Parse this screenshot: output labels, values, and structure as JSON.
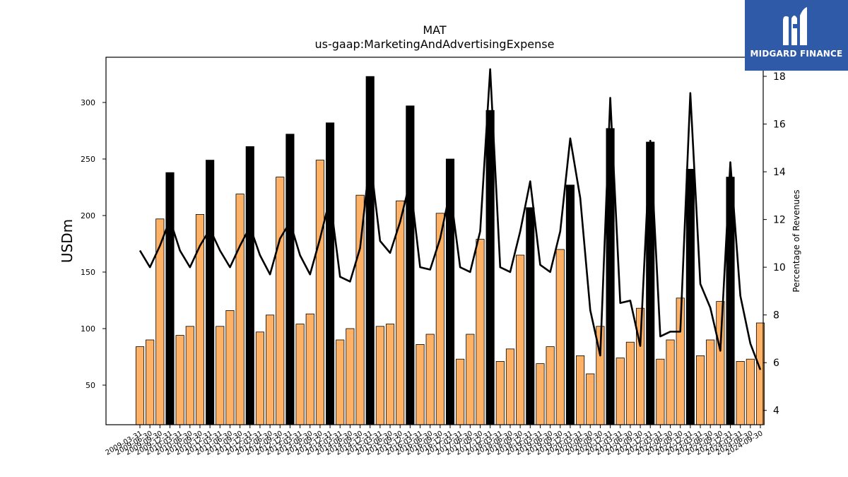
{
  "chart_data": {
    "type": "bar",
    "title": "MAT",
    "subtitle": "us-gaap:MarketingAndAdvertisingExpense",
    "ylabel": "USDm",
    "y2label": "Percentage of Revenues",
    "ylim": [
      15,
      340
    ],
    "y2lim": [
      3.4,
      18.8
    ],
    "yticks": [
      50,
      100,
      150,
      200,
      250,
      300
    ],
    "y2ticks": [
      4,
      6,
      8,
      10,
      12,
      14,
      16,
      18
    ],
    "categories": [
      "2009-03-31",
      "2009-06-30",
      "2009-09-30",
      "2009-12-31",
      "2010-03-31",
      "2010-06-30",
      "2010-09-30",
      "2010-12-31",
      "2011-03-31",
      "2011-06-30",
      "2011-09-30",
      "2011-12-31",
      "2012-03-31",
      "2012-06-30",
      "2012-09-30",
      "2012-12-31",
      "2013-03-31",
      "2013-06-30",
      "2013-09-30",
      "2013-12-31",
      "2014-03-31",
      "2014-06-30",
      "2014-09-30",
      "2014-12-31",
      "2015-03-31",
      "2015-06-30",
      "2015-09-30",
      "2015-12-31",
      "2016-03-31",
      "2016-06-30",
      "2016-09-30",
      "2016-12-31",
      "2017-03-31",
      "2017-06-30",
      "2017-09-30",
      "2017-12-31",
      "2018-03-31",
      "2018-06-30",
      "2018-09-30",
      "2018-12-31",
      "2019-03-31",
      "2019-06-30",
      "2019-09-30",
      "2019-12-31",
      "2020-03-31",
      "2020-06-30",
      "2020-09-30",
      "2020-12-31",
      "2021-03-31",
      "2021-06-30",
      "2021-09-30",
      "2021-12-31",
      "2022-03-31",
      "2022-06-30",
      "2022-09-30",
      "2022-12-31",
      "2023-03-31",
      "2023-06-30",
      "2023-09-30",
      "2023-12-31",
      "2024-03-31",
      "2024-06-30",
      "2024-09-30"
    ],
    "xtick_labels": [
      "2009-03-31",
      "2009-06-30",
      "2009-09-30",
      "2009-12-31",
      "2010-03-31",
      "2010-06-30",
      "2010-09-30",
      "2010-12-31",
      "2011-03-31",
      "2011-06-30",
      "2011-09-30",
      "2011-12-31",
      "2012-03-31",
      "2012-06-30",
      "2012-09-30",
      "2012-12-31",
      "2013-03-31",
      "2013-06-30",
      "2013-09-30",
      "2013-12-31",
      "2014-03-31",
      "2014-06-30",
      "2014-09-30",
      "2014-12-31",
      "2015-03-31",
      "2015-06-30",
      "2015-09-30",
      "2015-12-31",
      "2016-03-31",
      "2016-06-30",
      "2016-09-30",
      "2016-12-31",
      "2017-03-31",
      "2017-06-30",
      "2017-09-30",
      "2017-12-31",
      "2018-03-31",
      "2018-06-30",
      "2018-09-30",
      "2018-12-31",
      "2019-03-31",
      "2019-06-30",
      "2019-09-30",
      "2019-12-31",
      "2020-03-31",
      "2020-06-30",
      "2020-09-30",
      "2020-12-31",
      "2021-03-31",
      "2021-06-30",
      "2021-09-30",
      "2021-12-31",
      "2022-03-31",
      "2022-06-30",
      "2022-09-30",
      "2022-12-31",
      "2023-03-31",
      "2023-06-30",
      "2023-09-30",
      "2023-12-31",
      "2024-03-31",
      "2024-06-30",
      "2024-09-30"
    ],
    "series": [
      {
        "type": "bar",
        "axis": "left",
        "values": [
          84,
          90,
          197,
          238,
          94,
          102,
          201,
          249,
          102,
          116,
          219,
          261,
          97,
          112,
          234,
          272,
          104,
          113,
          249,
          282,
          90,
          100,
          218,
          323,
          102,
          104,
          213,
          297,
          86,
          95,
          202,
          250,
          73,
          95,
          179,
          293,
          71,
          82,
          165,
          207,
          69,
          84,
          170,
          227,
          76,
          60,
          102,
          277,
          74,
          88,
          118,
          265,
          73,
          90,
          127,
          241,
          76,
          90,
          124,
          234,
          71,
          73,
          105
        ],
        "bar_colors": [
          "#ffb266",
          "#ffb266",
          "#ffb266",
          "#000000",
          "#ffb266",
          "#ffb266",
          "#ffb266",
          "#000000",
          "#ffb266",
          "#ffb266",
          "#ffb266",
          "#000000",
          "#ffb266",
          "#ffb266",
          "#ffb266",
          "#000000",
          "#ffb266",
          "#ffb266",
          "#ffb266",
          "#000000",
          "#ffb266",
          "#ffb266",
          "#ffb266",
          "#000000",
          "#ffb266",
          "#ffb266",
          "#ffb266",
          "#000000",
          "#ffb266",
          "#ffb266",
          "#ffb266",
          "#000000",
          "#ffb266",
          "#ffb266",
          "#ffb266",
          "#000000",
          "#ffb266",
          "#ffb266",
          "#ffb266",
          "#000000",
          "#ffb266",
          "#ffb266",
          "#ffb266",
          "#000000",
          "#ffb266",
          "#ffb266",
          "#ffb266",
          "#000000",
          "#ffb266",
          "#ffb266",
          "#ffb266",
          "#000000",
          "#ffb266",
          "#ffb266",
          "#ffb266",
          "#000000",
          "#ffb266",
          "#ffb266",
          "#ffb266",
          "#000000",
          "#ffb266",
          "#ffb266",
          "#ffb266"
        ]
      },
      {
        "type": "line",
        "axis": "right",
        "color": "#000000",
        "values": [
          10.7,
          10.0,
          10.9,
          12.0,
          10.7,
          10.0,
          10.9,
          11.6,
          10.7,
          10.0,
          10.9,
          11.7,
          10.5,
          9.7,
          11.2,
          11.9,
          10.5,
          9.7,
          11.2,
          12.9,
          9.6,
          9.4,
          10.8,
          14.6,
          11.1,
          10.6,
          11.9,
          13.6,
          10.0,
          9.9,
          11.2,
          13.2,
          10.0,
          9.8,
          11.5,
          18.3,
          10.0,
          9.8,
          11.5,
          13.6,
          10.1,
          9.8,
          11.5,
          15.4,
          12.9,
          8.2,
          6.3,
          17.1,
          8.5,
          8.6,
          6.7,
          15.3,
          7.1,
          7.3,
          7.3,
          17.3,
          9.3,
          8.3,
          6.5,
          14.4,
          8.8,
          6.8,
          5.7
        ]
      }
    ],
    "colors": {
      "bar": "#ffb266",
      "bar_highlight": "#000000",
      "line": "#000000"
    },
    "grid": false,
    "legend": "none"
  },
  "logo": {
    "text": "MIDGARD FINANCE",
    "background": "#2f5aa8"
  }
}
